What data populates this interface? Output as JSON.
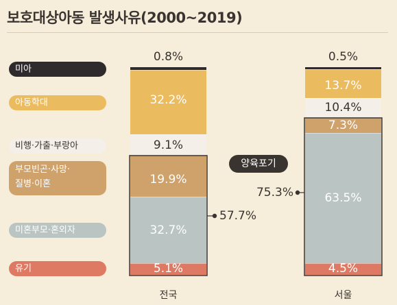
{
  "title": "보호대상아동 발생사유(2000~2019)",
  "colors": {
    "background": "#f6edda",
    "미아": "#2f2a2c",
    "아동학대": "#ebbb60",
    "비행·가출·부랑아": "#f4efe8",
    "부모빈곤·사망·질병·이혼": "#cfa26c",
    "미혼부모·혼외자": "#b9c4c3",
    "유기": "#de7a63"
  },
  "chart_data": {
    "type": "bar",
    "stacked": true,
    "categories": [
      "전국",
      "서울"
    ],
    "series": [
      {
        "name": "유기",
        "values": [
          5.1,
          4.5
        ]
      },
      {
        "name": "미혼부모·혼외자",
        "values": [
          32.7,
          63.5
        ]
      },
      {
        "name": "부모빈곤·사망·질병·이혼",
        "values": [
          19.9,
          7.3
        ]
      },
      {
        "name": "비행·가출·부랑아",
        "values": [
          9.1,
          10.4
        ]
      },
      {
        "name": "아동학대",
        "values": [
          32.2,
          13.7
        ]
      },
      {
        "name": "미아",
        "values": [
          0.8,
          0.5
        ]
      }
    ],
    "value_labels": [
      [
        "5.1%",
        "32.7%",
        "19.9%",
        "9.1%",
        "32.2%",
        "0.8%"
      ],
      [
        "4.5%",
        "63.5%",
        "7.3%",
        "10.4%",
        "13.7%",
        "0.5%"
      ]
    ],
    "legend": [
      "미아",
      "아동학대",
      "비행·가출·부랑아",
      "부모빈곤·사망·질병·이혼",
      "미혼부모·혼외자",
      "유기"
    ],
    "legend_position": "left",
    "annotations": {
      "group_label": "양육포기",
      "group_values": [
        "57.7%",
        "75.3%"
      ]
    }
  }
}
